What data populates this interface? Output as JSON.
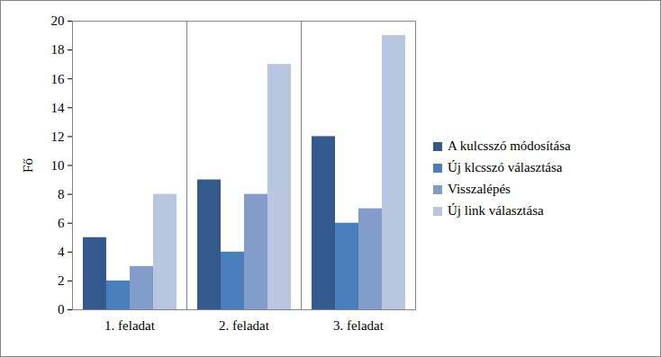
{
  "chart_data": {
    "type": "bar",
    "categories": [
      "1. feladat",
      "2. feladat",
      "3. feladat"
    ],
    "series": [
      {
        "name": "A kulcsszó módosítása",
        "color": "#35598c",
        "values": [
          5,
          9,
          12
        ]
      },
      {
        "name": "Új klcsszó választása",
        "color": "#4a7ebb",
        "values": [
          2,
          4,
          6
        ]
      },
      {
        "name": "Visszalépés",
        "color": "#819cc9",
        "values": [
          3,
          8,
          7
        ]
      },
      {
        "name": "Új link választása",
        "color": "#b8c6e0",
        "values": [
          8,
          17,
          19
        ]
      }
    ],
    "ylabel": "Fő",
    "ylim": [
      0,
      20
    ],
    "yticks": [
      0,
      2,
      4,
      6,
      8,
      10,
      12,
      14,
      16,
      18,
      20
    ],
    "grid": false,
    "legend": "right"
  }
}
